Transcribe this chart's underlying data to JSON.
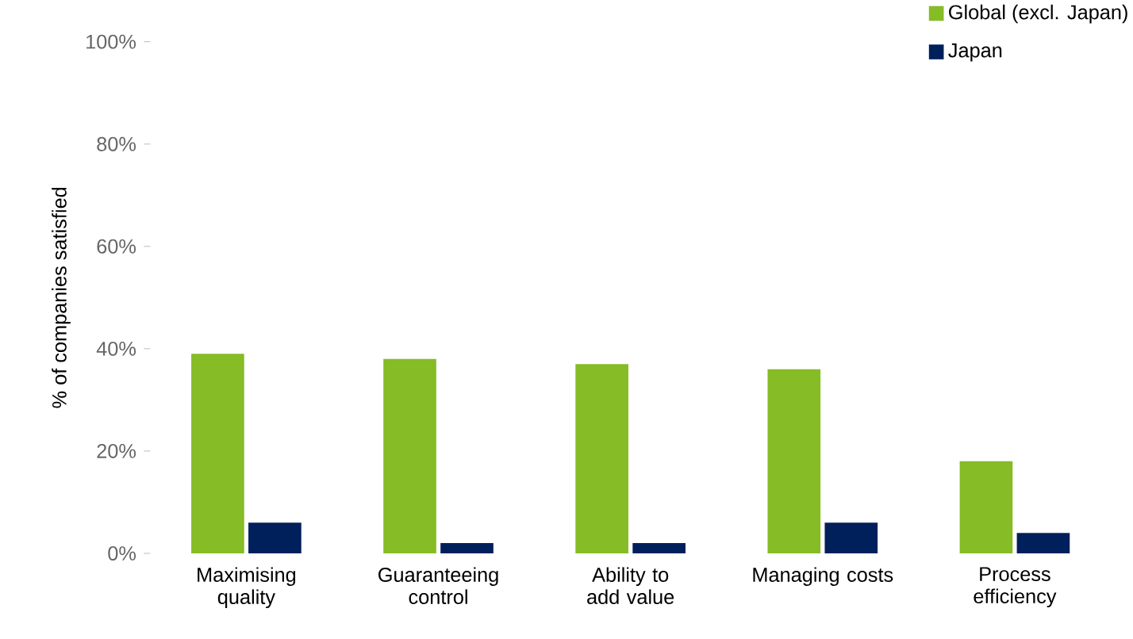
{
  "chart_data": {
    "type": "bar",
    "ylabel": "% of companies satisfied",
    "categories": [
      "Maximising quality",
      "Guaranteeing control",
      "Ability to add value",
      "Managing costs",
      "Process efficiency"
    ],
    "series": [
      {
        "name": "Global (excl. Japan)",
        "color": "#86bc25",
        "values": [
          39,
          38,
          37,
          36,
          18
        ]
      },
      {
        "name": "Japan",
        "color": "#00205b",
        "values": [
          6,
          2,
          2,
          6,
          4
        ]
      }
    ],
    "ylim": [
      0,
      100
    ],
    "yticks": [
      {
        "value": 0,
        "label": "0%"
      },
      {
        "value": 20,
        "label": "20%"
      },
      {
        "value": 40,
        "label": "40%"
      },
      {
        "value": 60,
        "label": "60%"
      },
      {
        "value": 80,
        "label": "80%"
      },
      {
        "value": 100,
        "label": "100%"
      }
    ],
    "legend": "top right",
    "grid": false
  }
}
